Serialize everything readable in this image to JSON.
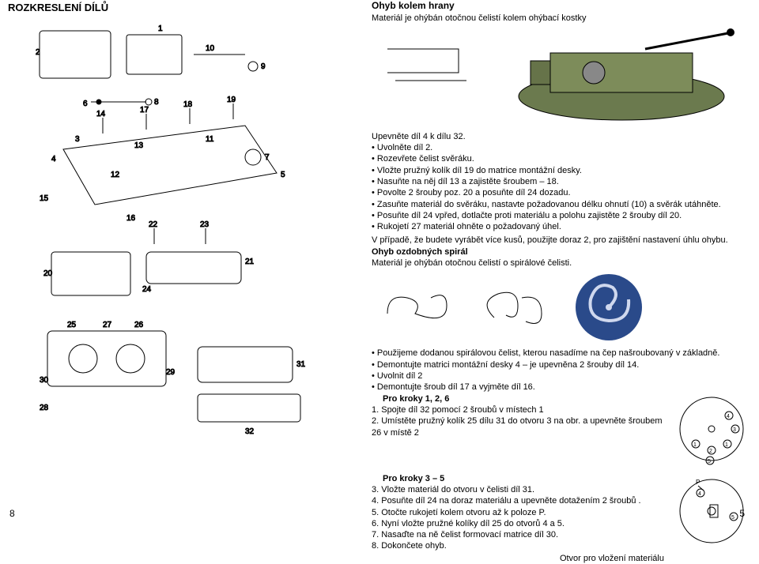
{
  "left": {
    "title": "ROZKRESLENÍ DÍLŮ",
    "pageNum": "8"
  },
  "right": {
    "h1": "Ohyb kolem hrany",
    "h1_sub": "Materiál je ohýbán otočnou čelistí kolem ohýbací kostky",
    "intro": "Upevněte díl 4 k dílu 32.",
    "bullets1": [
      "Uvolněte díl 2.",
      "Rozevřete čelist svěráku.",
      "Vložte pružný kolík díl 19 do matrice montážní desky.",
      "Nasuňte na něj díl 13 a zajistěte šroubem – 18.",
      "Povolte 2 šrouby poz. 20 a posuňte díl 24 dozadu.",
      "Zasuňte materiál do svěráku, nastavte požadovanou délku ohnutí (10) a svěrák utáhněte.",
      "Posuňte díl 24 vpřed, dotlačte proti materiálu a polohu zajistěte 2 šrouby díl 20.",
      "Rukojetí 27 materiál ohněte o požadovaný úhel."
    ],
    "after1": "V případě, že budete vyrábět více kusů, použijte doraz 2, pro zajištění nastavení úhlu ohybu.",
    "h2": "Ohyb ozdobných spirál",
    "h2_sub": "Materiál je ohýbán otočnou čelistí o spirálové čelisti.",
    "bullets2": [
      "Použijeme dodanou spirálovou čelist, kterou nasadíme na čep našroubovaný v základně.",
      "Demontujte matrici montážní desky 4 – je upevněna 2 šrouby díl 14.",
      "Uvolnit díl 2",
      "Demontujte šroub díl 17 a vyjměte díl 16."
    ],
    "pk126_title": "Pro kroky 1, 2, 6",
    "pk126_lines": [
      "1. Spojte díl 32 pomocí 2 šroubů v místech 1",
      "2. Umístěte pružný kolík 25 dílu 31 do otvoru 3 na obr. a upevněte šroubem 26 v místě 2"
    ],
    "pk35_title": "Pro kroky 3 – 5",
    "pk35_lines": [
      "3. Vložte materiál do otvoru v čelisti díl 31.",
      "4. Posuňte díl 24 na doraz materiálu a upevněte dotažením 2 šroubů .",
      "5. Otočte rukojetí kolem otvoru až k poloze P.",
      "6. Nyní vložte pružné kolíky díl 25 do otvorů 4 a 5.",
      "7. Nasaďte na ně čelist formovací matrice díl 30.",
      "8. Dokončete ohyb."
    ],
    "slot_label": "Otvor pro vložení materiálu",
    "pageNum": "5"
  }
}
